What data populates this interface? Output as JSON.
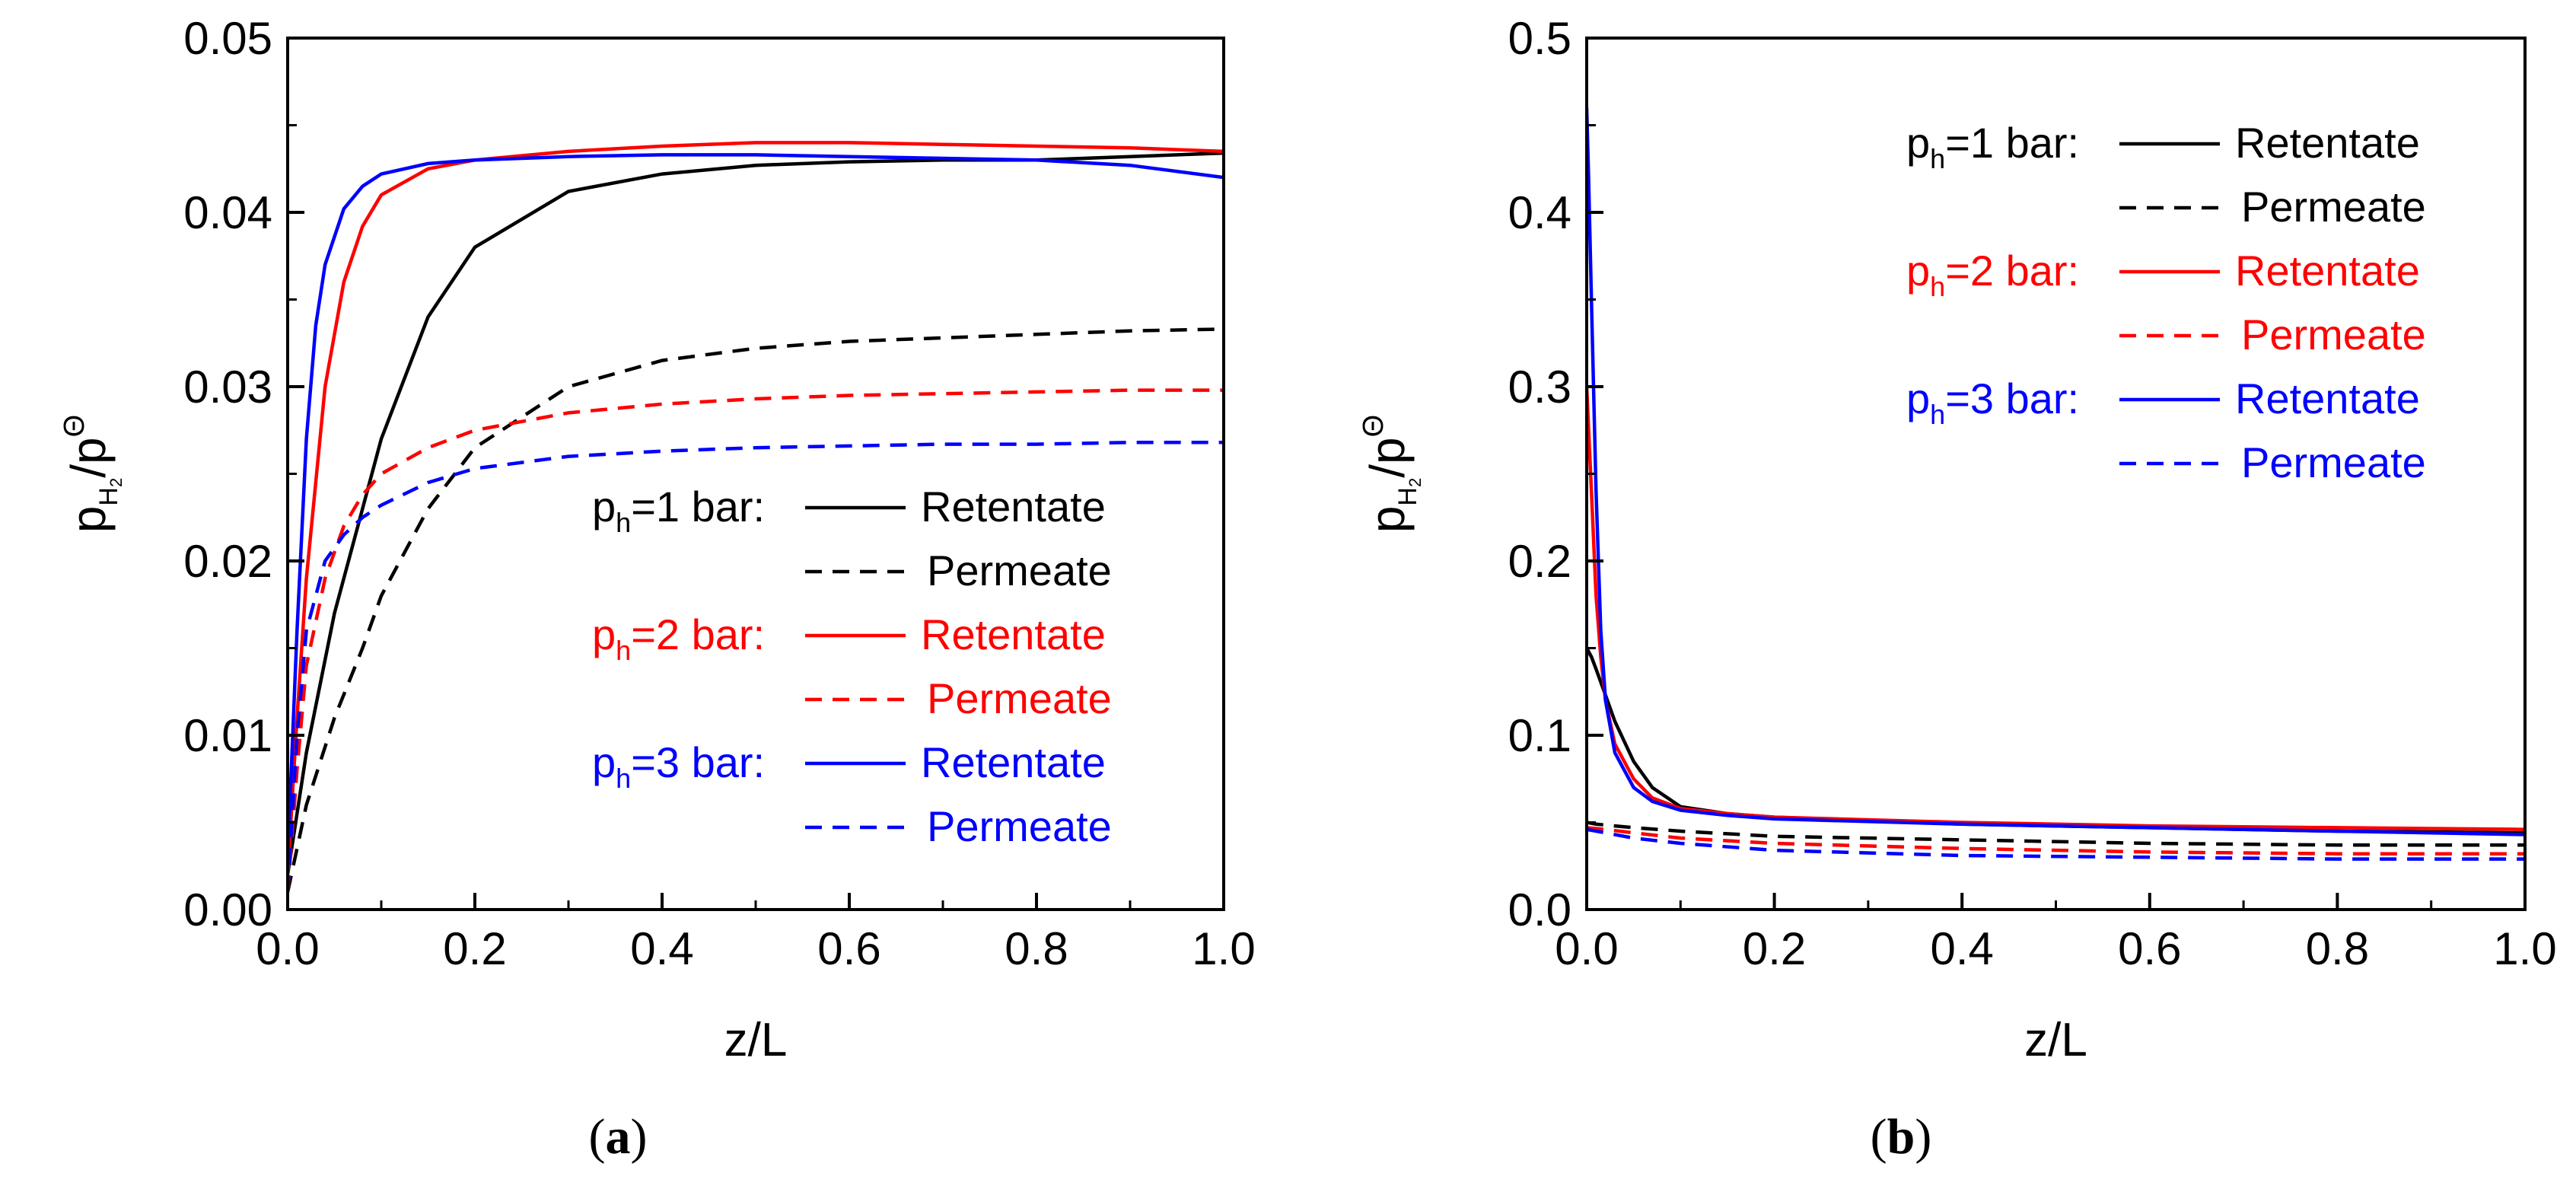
{
  "chart_data": [
    {
      "panel": "(a)",
      "panel_letter": "a",
      "type": "line",
      "xlabel": "z/L",
      "ylabel": {
        "base": "p",
        "sub": "H",
        "subsub": "2",
        "over": "/p",
        "sup": "Θ"
      },
      "xlim": [
        0,
        1
      ],
      "ylim": [
        0,
        0.05
      ],
      "xticks": [
        "0.0",
        "0.2",
        "0.4",
        "0.6",
        "0.8",
        "1.0"
      ],
      "yticks": [
        "0.00",
        "0.01",
        "0.02",
        "0.03",
        "0.04",
        "0.05"
      ],
      "legend": {
        "position": "lower-right",
        "groups": [
          {
            "prefix": "p",
            "sub": "h",
            "suffix": "=1 bar:",
            "color": "#000000"
          },
          {
            "prefix": "p",
            "sub": "h",
            "suffix": "=2 bar:",
            "color": "#ff0000"
          },
          {
            "prefix": "p",
            "sub": "h",
            "suffix": "=3 bar:",
            "color": "#0000ff"
          }
        ],
        "retentate_label": "Retentate",
        "permeate_label": "Permeate"
      },
      "series": [
        {
          "name": "p_h=1 bar Retentate",
          "color": "#000000",
          "dash": false,
          "x": [
            0,
            0.02,
            0.05,
            0.08,
            0.1,
            0.15,
            0.2,
            0.3,
            0.4,
            0.5,
            0.6,
            0.7,
            0.8,
            0.9,
            1.0
          ],
          "y": [
            0.002,
            0.009,
            0.017,
            0.023,
            0.027,
            0.034,
            0.038,
            0.0412,
            0.0422,
            0.0427,
            0.0429,
            0.043,
            0.043,
            0.0432,
            0.0434
          ]
        },
        {
          "name": "p_h=1 bar Permeate",
          "color": "#000000",
          "dash": true,
          "x": [
            0,
            0.02,
            0.05,
            0.08,
            0.1,
            0.15,
            0.2,
            0.3,
            0.4,
            0.5,
            0.6,
            0.7,
            0.8,
            0.9,
            1.0
          ],
          "y": [
            0.001,
            0.006,
            0.011,
            0.015,
            0.018,
            0.023,
            0.0265,
            0.03,
            0.0315,
            0.0322,
            0.0326,
            0.0328,
            0.033,
            0.0332,
            0.0333
          ]
        },
        {
          "name": "p_h=2 bar Retentate",
          "color": "#ff0000",
          "dash": false,
          "x": [
            0,
            0.01,
            0.02,
            0.04,
            0.06,
            0.08,
            0.1,
            0.15,
            0.2,
            0.3,
            0.4,
            0.5,
            0.6,
            0.7,
            0.8,
            0.9,
            1.0
          ],
          "y": [
            0.002,
            0.011,
            0.019,
            0.03,
            0.036,
            0.0392,
            0.041,
            0.0425,
            0.043,
            0.0435,
            0.0438,
            0.044,
            0.044,
            0.0439,
            0.0438,
            0.0437,
            0.0435
          ]
        },
        {
          "name": "p_h=2 bar Permeate",
          "color": "#ff0000",
          "dash": true,
          "x": [
            0,
            0.01,
            0.02,
            0.04,
            0.06,
            0.08,
            0.1,
            0.15,
            0.2,
            0.3,
            0.4,
            0.5,
            0.6,
            0.7,
            0.8,
            0.9,
            1.0
          ],
          "y": [
            0.001,
            0.008,
            0.014,
            0.019,
            0.022,
            0.0238,
            0.025,
            0.0265,
            0.0275,
            0.0285,
            0.029,
            0.0293,
            0.0295,
            0.0296,
            0.0297,
            0.0298,
            0.0298
          ]
        },
        {
          "name": "p_h=3 bar Retentate",
          "color": "#0000ff",
          "dash": false,
          "x": [
            0,
            0.01,
            0.02,
            0.03,
            0.04,
            0.06,
            0.08,
            0.1,
            0.15,
            0.2,
            0.3,
            0.4,
            0.5,
            0.6,
            0.7,
            0.8,
            0.9,
            1.0
          ],
          "y": [
            0.003,
            0.016,
            0.027,
            0.0335,
            0.037,
            0.0402,
            0.0415,
            0.0422,
            0.0428,
            0.043,
            0.0432,
            0.0433,
            0.0433,
            0.0432,
            0.0431,
            0.043,
            0.0427,
            0.042
          ]
        },
        {
          "name": "p_h=3 bar Permeate",
          "color": "#0000ff",
          "dash": true,
          "x": [
            0,
            0.01,
            0.02,
            0.04,
            0.06,
            0.08,
            0.1,
            0.15,
            0.2,
            0.3,
            0.4,
            0.5,
            0.6,
            0.7,
            0.8,
            0.9,
            1.0
          ],
          "y": [
            0.001,
            0.01,
            0.016,
            0.02,
            0.0215,
            0.0225,
            0.0232,
            0.0245,
            0.0253,
            0.026,
            0.0263,
            0.0265,
            0.0266,
            0.0267,
            0.0267,
            0.0268,
            0.0268
          ]
        }
      ]
    },
    {
      "panel": "(b)",
      "panel_letter": "b",
      "type": "line",
      "xlabel": "z/L",
      "ylabel": {
        "base": "p",
        "sub": "H",
        "subsub": "2",
        "over": "/p",
        "sup": "Θ"
      },
      "xlim": [
        0,
        1
      ],
      "ylim": [
        0,
        0.5
      ],
      "xticks": [
        "0.0",
        "0.2",
        "0.4",
        "0.6",
        "0.8",
        "1.0"
      ],
      "yticks": [
        "0.0",
        "0.1",
        "0.2",
        "0.3",
        "0.4",
        "0.5"
      ],
      "legend": {
        "position": "top-right",
        "groups": [
          {
            "prefix": "p",
            "sub": "h",
            "suffix": "=1 bar:",
            "color": "#000000"
          },
          {
            "prefix": "p",
            "sub": "h",
            "suffix": "=2 bar:",
            "color": "#ff0000"
          },
          {
            "prefix": "p",
            "sub": "h",
            "suffix": "=3 bar:",
            "color": "#0000ff"
          }
        ],
        "retentate_label": "Retentate",
        "permeate_label": "Permeate"
      },
      "series": [
        {
          "name": "p_h=1 bar Retentate",
          "color": "#000000",
          "dash": false,
          "x": [
            0,
            0.005,
            0.01,
            0.02,
            0.03,
            0.05,
            0.07,
            0.1,
            0.15,
            0.2,
            0.4,
            0.6,
            0.8,
            1.0
          ],
          "y": [
            0.15,
            0.145,
            0.138,
            0.123,
            0.108,
            0.085,
            0.07,
            0.059,
            0.055,
            0.053,
            0.049,
            0.047,
            0.045,
            0.044
          ]
        },
        {
          "name": "p_h=1 bar Permeate",
          "color": "#000000",
          "dash": true,
          "x": [
            0,
            0.01,
            0.05,
            0.1,
            0.2,
            0.4,
            0.6,
            0.8,
            1.0
          ],
          "y": [
            0.05,
            0.049,
            0.047,
            0.045,
            0.042,
            0.04,
            0.038,
            0.037,
            0.037
          ]
        },
        {
          "name": "p_h=2 bar Retentate",
          "color": "#ff0000",
          "dash": false,
          "x": [
            0,
            0.005,
            0.01,
            0.015,
            0.02,
            0.03,
            0.05,
            0.07,
            0.1,
            0.15,
            0.2,
            0.4,
            0.6,
            0.8,
            1.0
          ],
          "y": [
            0.3,
            0.24,
            0.18,
            0.145,
            0.12,
            0.095,
            0.075,
            0.064,
            0.058,
            0.055,
            0.053,
            0.05,
            0.048,
            0.047,
            0.046
          ]
        },
        {
          "name": "p_h=2 bar Permeate",
          "color": "#ff0000",
          "dash": true,
          "x": [
            0,
            0.02,
            0.05,
            0.1,
            0.2,
            0.4,
            0.6,
            0.8,
            1.0
          ],
          "y": [
            0.047,
            0.046,
            0.044,
            0.041,
            0.038,
            0.035,
            0.033,
            0.032,
            0.032
          ]
        },
        {
          "name": "p_h=3 bar Retentate",
          "color": "#0000ff",
          "dash": false,
          "x": [
            0,
            0.002,
            0.005,
            0.01,
            0.015,
            0.02,
            0.03,
            0.05,
            0.07,
            0.1,
            0.15,
            0.2,
            0.4,
            0.6,
            0.8,
            1.0
          ],
          "y": [
            0.46,
            0.42,
            0.35,
            0.24,
            0.16,
            0.12,
            0.09,
            0.07,
            0.062,
            0.057,
            0.054,
            0.052,
            0.049,
            0.047,
            0.045,
            0.043
          ]
        },
        {
          "name": "p_h=3 bar Permeate",
          "color": "#0000ff",
          "dash": true,
          "x": [
            0,
            0.02,
            0.05,
            0.1,
            0.2,
            0.4,
            0.6,
            0.8,
            1.0
          ],
          "y": [
            0.046,
            0.044,
            0.041,
            0.038,
            0.034,
            0.031,
            0.03,
            0.029,
            0.029
          ]
        }
      ]
    }
  ]
}
